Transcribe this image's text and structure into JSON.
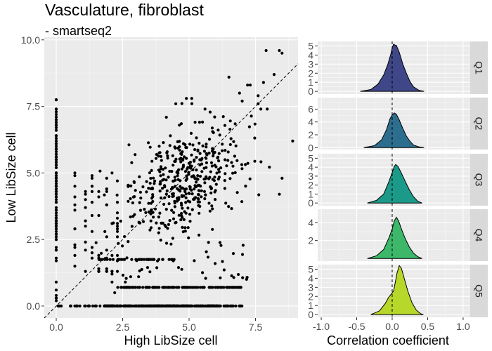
{
  "title": "Vasculature, fibroblast",
  "subtitle": "- smartseq2",
  "chart_data": [
    {
      "type": "scatter",
      "xlabel": "High LibSize cell",
      "ylabel": "Low LibSize cell",
      "xlim": [
        -0.45,
        9.1
      ],
      "ylim": [
        -0.45,
        10.1
      ],
      "xticks": [
        0,
        2.5,
        5,
        7.5
      ],
      "xtick_labels": [
        "0.0",
        "2.5",
        "5.0",
        "7.5"
      ],
      "yticks": [
        0,
        2.5,
        5,
        7.5,
        10
      ],
      "ytick_labels": [
        "0.0",
        "2.5",
        "5.0",
        "7.5",
        "10.0"
      ],
      "reference_line": "y = x (dashed)",
      "point_color": "#000000",
      "panel_background": "#ebebeb",
      "grid": true,
      "clusters": [
        {
          "description": "column at x=0",
          "x": 0,
          "y_range": [
            0,
            7.75
          ],
          "approx_count": 130
        },
        {
          "description": "row at y=0",
          "y": 0,
          "x_range": [
            0,
            7.3
          ],
          "approx_count": 320
        },
        {
          "description": "row at y=0.7",
          "y": 0.7,
          "x_range": [
            2.3,
            7.0
          ],
          "approx_count": 120
        },
        {
          "description": "main cloud",
          "x_center": 4.8,
          "y_center": 4.7,
          "approx_count": 420
        },
        {
          "description": "low discrete columns",
          "x": [
            0.7,
            1.1,
            1.4,
            1.8,
            2.0
          ],
          "y_range": [
            0,
            5.3
          ],
          "approx_count": 60
        }
      ],
      "points": [
        [
          7.9,
          9.6
        ],
        [
          8.4,
          9.6
        ],
        [
          8.5,
          9.5
        ],
        [
          8.2,
          8.7
        ],
        [
          7.8,
          8.4
        ],
        [
          6.5,
          8.6
        ],
        [
          7.2,
          8.3
        ],
        [
          7.3,
          8.3
        ],
        [
          6.9,
          8.0
        ],
        [
          8.9,
          6.2
        ],
        [
          8.4,
          4.2
        ],
        [
          8.5,
          4.8
        ],
        [
          7.6,
          7.9
        ],
        [
          7.7,
          7.4
        ],
        [
          7.6,
          7.6
        ],
        [
          7.0,
          7.7
        ],
        [
          4.9,
          7.8
        ],
        [
          5.1,
          7.8
        ],
        [
          4.5,
          7.6
        ],
        [
          0,
          7.75
        ],
        [
          5.6,
          7.4
        ],
        [
          2.1,
          1.2
        ],
        [
          2.8,
          1.1
        ],
        [
          2.6,
          0.9
        ],
        [
          2.2,
          0.5
        ],
        [
          3.1,
          1.1
        ],
        [
          2.1,
          0.9
        ]
      ]
    },
    {
      "type": "area",
      "description": "density ridgelines of correlation coefficient by quantile",
      "xlabel": "Correlation coefficient",
      "xlim": [
        -1.05,
        1.1
      ],
      "xticks": [
        -1,
        -0.5,
        0,
        0.5,
        1
      ],
      "xtick_labels": [
        "-1.0",
        "-0.5",
        "0.0",
        "0.5",
        "1.0"
      ],
      "vline_x": 0,
      "series": [
        {
          "name": "Q1",
          "color": "#3f4788",
          "peak_x": 0.02,
          "peak_density": 5.2,
          "ylim": [
            -0.3,
            5.5
          ],
          "yticks": [
            0,
            1,
            2,
            3,
            4,
            5
          ],
          "ytick_labels": [
            "0",
            "1",
            "2",
            "3",
            "4",
            "5"
          ],
          "density": [
            [
              -0.45,
              0
            ],
            [
              -0.3,
              0.2
            ],
            [
              -0.2,
              0.8
            ],
            [
              -0.12,
              1.8
            ],
            [
              -0.06,
              3.0
            ],
            [
              -0.02,
              4.1
            ],
            [
              0.0,
              4.8
            ],
            [
              0.02,
              5.2
            ],
            [
              0.04,
              5.1
            ],
            [
              0.06,
              5.05
            ],
            [
              0.1,
              4.3
            ],
            [
              0.15,
              3.0
            ],
            [
              0.2,
              2.0
            ],
            [
              0.25,
              1.1
            ],
            [
              0.3,
              0.5
            ],
            [
              0.38,
              0.1
            ],
            [
              0.45,
              0
            ]
          ]
        },
        {
          "name": "Q2",
          "color": "#2d6e8e",
          "peak_x": 0.03,
          "peak_density": 5.4,
          "ylim": [
            -0.3,
            7.8
          ],
          "yticks": [
            0,
            2,
            4,
            6
          ],
          "ytick_labels": [
            "0",
            "2",
            "4",
            "6"
          ],
          "density": [
            [
              -0.4,
              0
            ],
            [
              -0.25,
              0.3
            ],
            [
              -0.15,
              1.2
            ],
            [
              -0.08,
              2.8
            ],
            [
              -0.03,
              4.5
            ],
            [
              0.0,
              5.1
            ],
            [
              0.03,
              5.4
            ],
            [
              0.06,
              5.2
            ],
            [
              0.1,
              4.3
            ],
            [
              0.15,
              3.0
            ],
            [
              0.2,
              1.8
            ],
            [
              0.25,
              1.0
            ],
            [
              0.3,
              0.4
            ],
            [
              0.38,
              0.1
            ],
            [
              0.45,
              0
            ]
          ]
        },
        {
          "name": "Q3",
          "color": "#1b9a8a",
          "peak_x": 0.05,
          "peak_density": 4.3,
          "ylim": [
            -0.3,
            5.5
          ],
          "yticks": [
            0,
            1,
            2,
            3,
            4,
            5
          ],
          "ytick_labels": [
            "0",
            "1",
            "2",
            "3",
            "4",
            "5"
          ],
          "density": [
            [
              -0.35,
              0
            ],
            [
              -0.22,
              0.3
            ],
            [
              -0.12,
              1.0
            ],
            [
              -0.05,
              2.3
            ],
            [
              0.0,
              3.4
            ],
            [
              0.03,
              4.1
            ],
            [
              0.05,
              4.3
            ],
            [
              0.08,
              4.1
            ],
            [
              0.12,
              3.5
            ],
            [
              0.18,
              2.5
            ],
            [
              0.24,
              1.5
            ],
            [
              0.3,
              0.7
            ],
            [
              0.36,
              0.2
            ],
            [
              0.42,
              0
            ]
          ]
        },
        {
          "name": "Q4",
          "color": "#3db86b",
          "peak_x": 0.06,
          "peak_density": 4.6,
          "ylim": [
            -0.3,
            5.5
          ],
          "yticks": [
            2,
            4
          ],
          "ytick_labels": [
            "2",
            "4"
          ],
          "density": [
            [
              -0.35,
              0
            ],
            [
              -0.22,
              0.3
            ],
            [
              -0.12,
              1.0
            ],
            [
              -0.04,
              2.4
            ],
            [
              0.0,
              3.3
            ],
            [
              0.03,
              4.2
            ],
            [
              0.06,
              4.6
            ],
            [
              0.09,
              4.2
            ],
            [
              0.13,
              3.3
            ],
            [
              0.18,
              2.3
            ],
            [
              0.24,
              1.3
            ],
            [
              0.3,
              0.6
            ],
            [
              0.36,
              0.2
            ],
            [
              0.42,
              0
            ]
          ]
        },
        {
          "name": "Q5",
          "color": "#b7d72b",
          "peak_x": 0.1,
          "peak_density": 5.4,
          "ylim": [
            -0.3,
            5.5
          ],
          "yticks": [
            0,
            1,
            2,
            3,
            4,
            5
          ],
          "ytick_labels": [
            "0",
            "1",
            "2",
            "3",
            "4",
            "5"
          ],
          "density": [
            [
              -0.3,
              0
            ],
            [
              -0.18,
              0.4
            ],
            [
              -0.1,
              1.2
            ],
            [
              -0.05,
              1.9
            ],
            [
              0.0,
              2.4
            ],
            [
              0.02,
              2.6
            ],
            [
              0.04,
              3.4
            ],
            [
              0.07,
              4.6
            ],
            [
              0.1,
              5.4
            ],
            [
              0.13,
              5.1
            ],
            [
              0.17,
              4.0
            ],
            [
              0.22,
              2.6
            ],
            [
              0.28,
              1.3
            ],
            [
              0.34,
              0.5
            ],
            [
              0.4,
              0.1
            ],
            [
              0.44,
              0
            ]
          ]
        }
      ]
    }
  ]
}
